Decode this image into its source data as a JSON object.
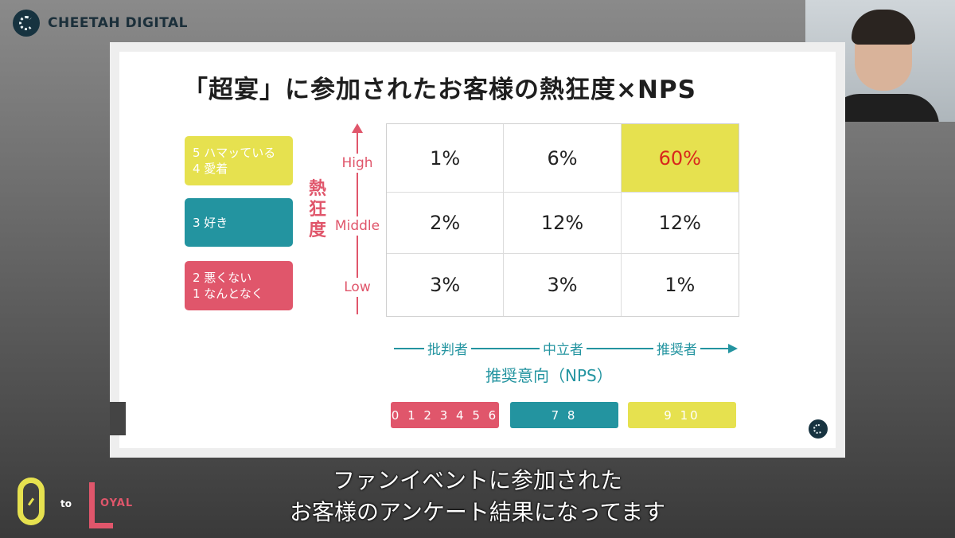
{
  "header": {
    "brand_name": "CHEETAH DIGITAL"
  },
  "slide": {
    "title": "「超宴」に参加されたお客様の熱狂度×NPS",
    "legend": [
      {
        "line1": "5 ハマッている",
        "line2": "4 愛着"
      },
      {
        "line1": "3 好き",
        "line2": ""
      },
      {
        "line1": "2 悪くない",
        "line2": "1 なんとなく"
      }
    ],
    "y_axis_label": "熱狂度",
    "row_labels": [
      "High",
      "Middle",
      "Low"
    ],
    "grid": [
      [
        "1%",
        "6%",
        "60%"
      ],
      [
        "2%",
        "12%",
        "12%"
      ],
      [
        "3%",
        "3%",
        "1%"
      ]
    ],
    "nps_categories": [
      "批判者",
      "中立者",
      "推奨者"
    ],
    "x_axis_label": "推奨意向（NPS）",
    "score_ranges": [
      "0 1 2 3 4 5 6",
      "7 8",
      "9 10"
    ],
    "colors": {
      "enthusiast": "#e6e14f",
      "neutral": "#2394a0",
      "low": "#e0566b",
      "highlight_text": "#d8271c"
    }
  },
  "subtitle": {
    "line1": "ファンイベントに参加された",
    "line2": "お客様のアンケート結果になってます"
  },
  "footer_logo": {
    "zero": "0",
    "to": "to",
    "l": "L",
    "oyal": "OYAL"
  }
}
